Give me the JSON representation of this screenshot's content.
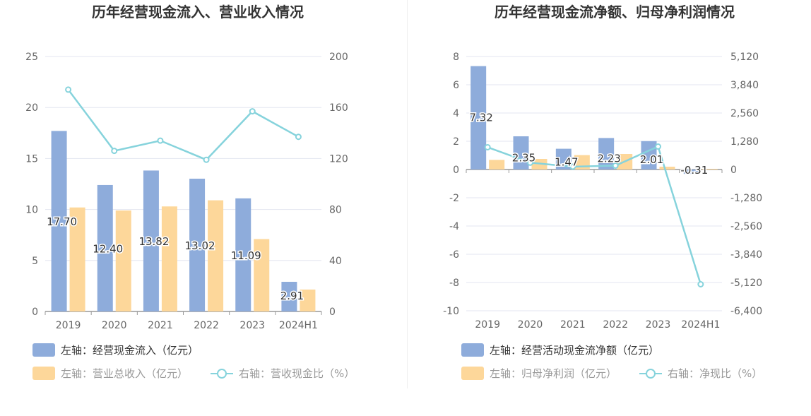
{
  "chart_data": [
    {
      "type": "bar",
      "title": "历年经营现金流入、营业收入情况",
      "categories": [
        "2019",
        "2020",
        "2021",
        "2022",
        "2023",
        "2024H1"
      ],
      "left_axis": {
        "min": 0,
        "max": 25,
        "ticks": [
          "0",
          "5",
          "10",
          "15",
          "20",
          "25"
        ]
      },
      "right_axis": {
        "min": 0,
        "max": 200,
        "ticks": [
          "0",
          "40",
          "80",
          "120",
          "160",
          "200"
        ]
      },
      "series": [
        {
          "name": "左轴：经营现金流入（亿元）",
          "kind": "bar",
          "axis": "left",
          "color": "#8eacdb",
          "values": [
            17.7,
            12.4,
            13.82,
            13.02,
            11.09,
            2.91
          ],
          "labels": [
            "17.70",
            "12.40",
            "13.82",
            "13.02",
            "11.09",
            "2.91"
          ]
        },
        {
          "name": "左轴：营业总收入（亿元）",
          "kind": "bar",
          "axis": "left",
          "color": "#fdd79a",
          "values": [
            10.2,
            9.9,
            10.3,
            10.9,
            7.1,
            2.15
          ]
        },
        {
          "name": "右轴：营收现金比（%）",
          "kind": "line",
          "axis": "right",
          "color": "#86d3dc",
          "values": [
            174,
            126,
            134,
            119,
            157,
            137
          ]
        }
      ]
    },
    {
      "type": "bar",
      "title": "历年经营现金流净额、归母净利润情况",
      "categories": [
        "2019",
        "2020",
        "2021",
        "2022",
        "2023",
        "2024H1"
      ],
      "left_axis": {
        "min": -10,
        "max": 8,
        "ticks": [
          "-10",
          "-8",
          "-6",
          "-4",
          "-2",
          "0",
          "2",
          "4",
          "6",
          "8"
        ]
      },
      "right_axis": {
        "min": -6400,
        "max": 5120,
        "ticks": [
          "-6,400",
          "-5,120",
          "-3,840",
          "-2,560",
          "-1,280",
          "0",
          "1,280",
          "2,560",
          "3,840",
          "5,120"
        ]
      },
      "series": [
        {
          "name": "左轴：经营活动现金流净额（亿元）",
          "kind": "bar",
          "axis": "left",
          "color": "#8eacdb",
          "values": [
            7.32,
            2.35,
            1.47,
            2.23,
            2.01,
            -0.31
          ],
          "labels": [
            "7.32",
            "2.35",
            "1.47",
            "2.23",
            "2.01",
            "-0.31"
          ]
        },
        {
          "name": "左轴：归母净利润（亿元）",
          "kind": "bar",
          "axis": "left",
          "color": "#fdd79a",
          "values": [
            0.68,
            0.75,
            1.02,
            1.1,
            0.2,
            0.05
          ]
        },
        {
          "name": "右轴：净现比（%）",
          "kind": "line",
          "axis": "right",
          "color": "#86d3dc",
          "values": [
            1010,
            310,
            130,
            175,
            1040,
            -5200
          ]
        }
      ]
    }
  ]
}
